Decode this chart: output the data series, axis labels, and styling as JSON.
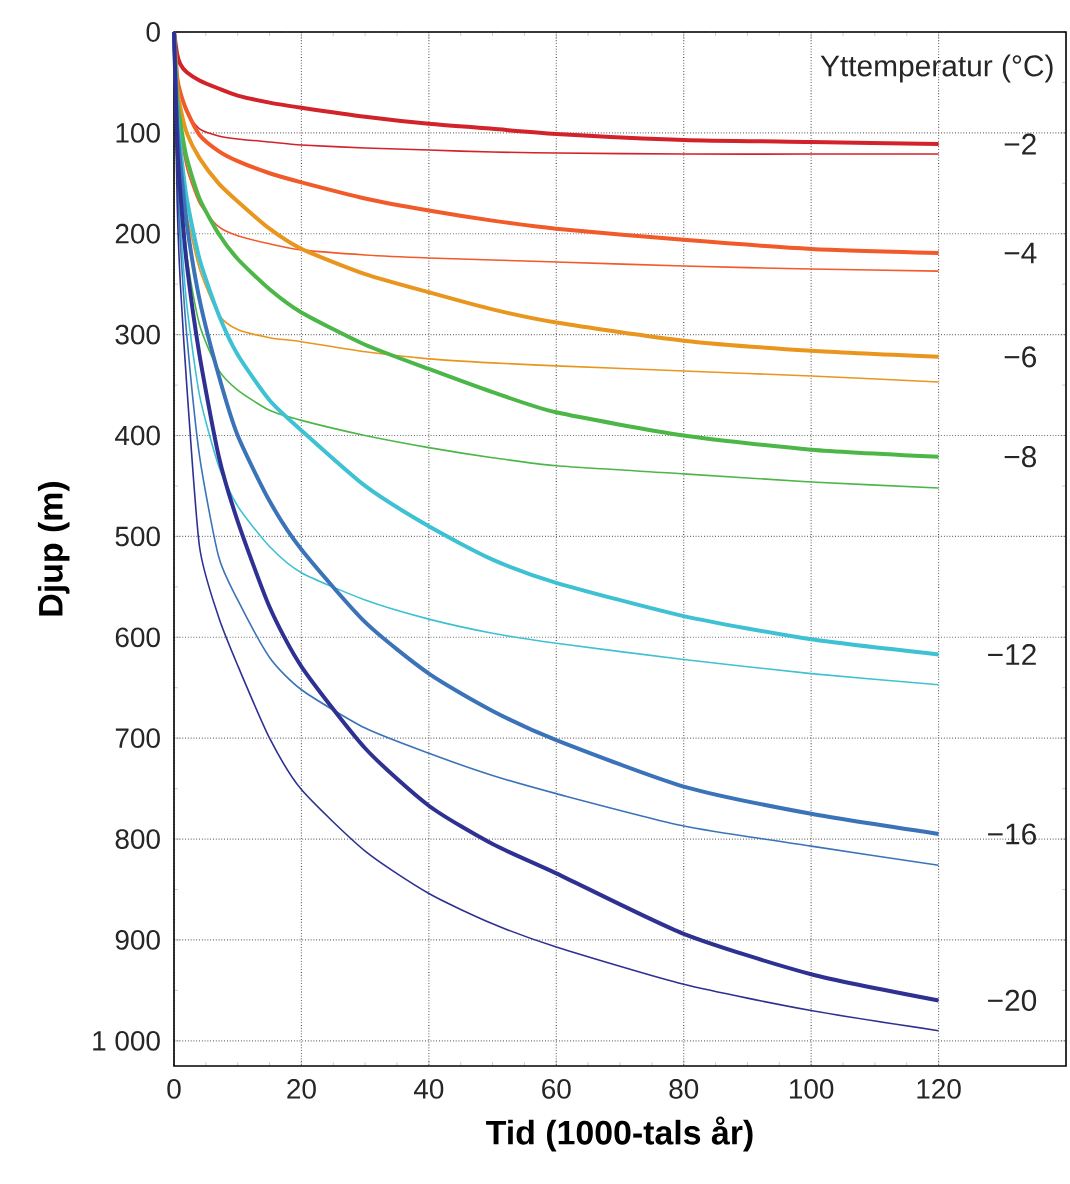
{
  "chart_data": {
    "type": "line",
    "xlabel": "Tid (1000-tals år)",
    "ylabel": "Djup (m)",
    "legend_title": "Yttemperatur (°C)",
    "grid": true,
    "x": [
      0,
      0.5,
      1,
      2,
      4,
      7,
      10,
      15,
      20,
      30,
      40,
      50,
      60,
      80,
      100,
      120
    ],
    "xlim": [
      0,
      140
    ],
    "xticks": [
      0,
      20,
      40,
      60,
      80,
      100,
      120
    ],
    "ylim": [
      1025,
      0
    ],
    "yticks": [
      0,
      100,
      200,
      300,
      400,
      500,
      600,
      700,
      800,
      900,
      {
        "value": 1000,
        "label": "1 000"
      }
    ],
    "series": [
      {
        "name": "−2",
        "color": "#d2232a",
        "values": [
          0,
          22,
          32,
          40,
          48,
          56,
          63,
          70,
          75,
          84,
          91,
          96,
          101,
          107,
          109,
          111
        ]
      },
      {
        "color": "#d2232a",
        "values": [
          0,
          40,
          60,
          80,
          96,
          103,
          106,
          109,
          112,
          115,
          117,
          119,
          120,
          121,
          121,
          121
        ]
      },
      {
        "name": "−4",
        "color": "#f15a29",
        "values": [
          0,
          45,
          60,
          78,
          102,
          118,
          128,
          140,
          149,
          165,
          177,
          187,
          195,
          206,
          215,
          219
        ]
      },
      {
        "color": "#f15a29",
        "values": [
          0,
          70,
          100,
          135,
          170,
          193,
          202,
          210,
          216,
          221,
          224,
          226,
          228,
          232,
          235,
          237
        ]
      },
      {
        "name": "−6",
        "color": "#e8961e",
        "values": [
          0,
          55,
          75,
          100,
          125,
          150,
          168,
          195,
          215,
          240,
          258,
          275,
          288,
          306,
          316,
          322
        ]
      },
      {
        "color": "#e8961e",
        "values": [
          0,
          90,
          130,
          180,
          235,
          280,
          295,
          303,
          307,
          317,
          324,
          328,
          331,
          336,
          341,
          347
        ]
      },
      {
        "name": "−8",
        "color": "#4cb748",
        "values": [
          0,
          65,
          90,
          125,
          165,
          200,
          225,
          255,
          278,
          310,
          334,
          357,
          377,
          400,
          414,
          421
        ]
      },
      {
        "color": "#4cb748",
        "values": [
          0,
          105,
          null,
          220,
          290,
          335,
          355,
          375,
          385,
          400,
          412,
          422,
          430,
          438,
          446,
          452
        ]
      },
      {
        "name": "−12",
        "color": "#3ec1d3",
        "values": [
          0,
          80,
          115,
          165,
          225,
          280,
          320,
          365,
          395,
          450,
          490,
          523,
          546,
          579,
          602,
          617
        ]
      },
      {
        "color": "#3ec1d3",
        "values": [
          0,
          130,
          190,
          270,
          360,
          430,
          470,
          510,
          536,
          563,
          582,
          596,
          606,
          622,
          636,
          647
        ]
      },
      {
        "name": "−16",
        "color": "#3b73b9",
        "values": [
          0,
          90,
          130,
          190,
          265,
          340,
          400,
          465,
          513,
          585,
          636,
          673,
          702,
          748,
          775,
          795
        ]
      },
      {
        "color": "#3b73b9",
        "values": [
          0,
          140,
          210,
          300,
          420,
          520,
          563,
          620,
          652,
          690,
          715,
          737,
          755,
          787,
          807,
          826
        ]
      },
      {
        "name": "−20",
        "color": "#2e3192",
        "values": [
          0,
          110,
          160,
          230,
          320,
          420,
          485,
          570,
          629,
          710,
          767,
          805,
          834,
          894,
          934,
          960
        ]
      },
      {
        "color": "#2e3192",
        "values": [
          0,
          170,
          250,
          350,
          510,
          580,
          628,
          700,
          751,
          812,
          854,
          884,
          907,
          944,
          970,
          990
        ]
      }
    ]
  }
}
